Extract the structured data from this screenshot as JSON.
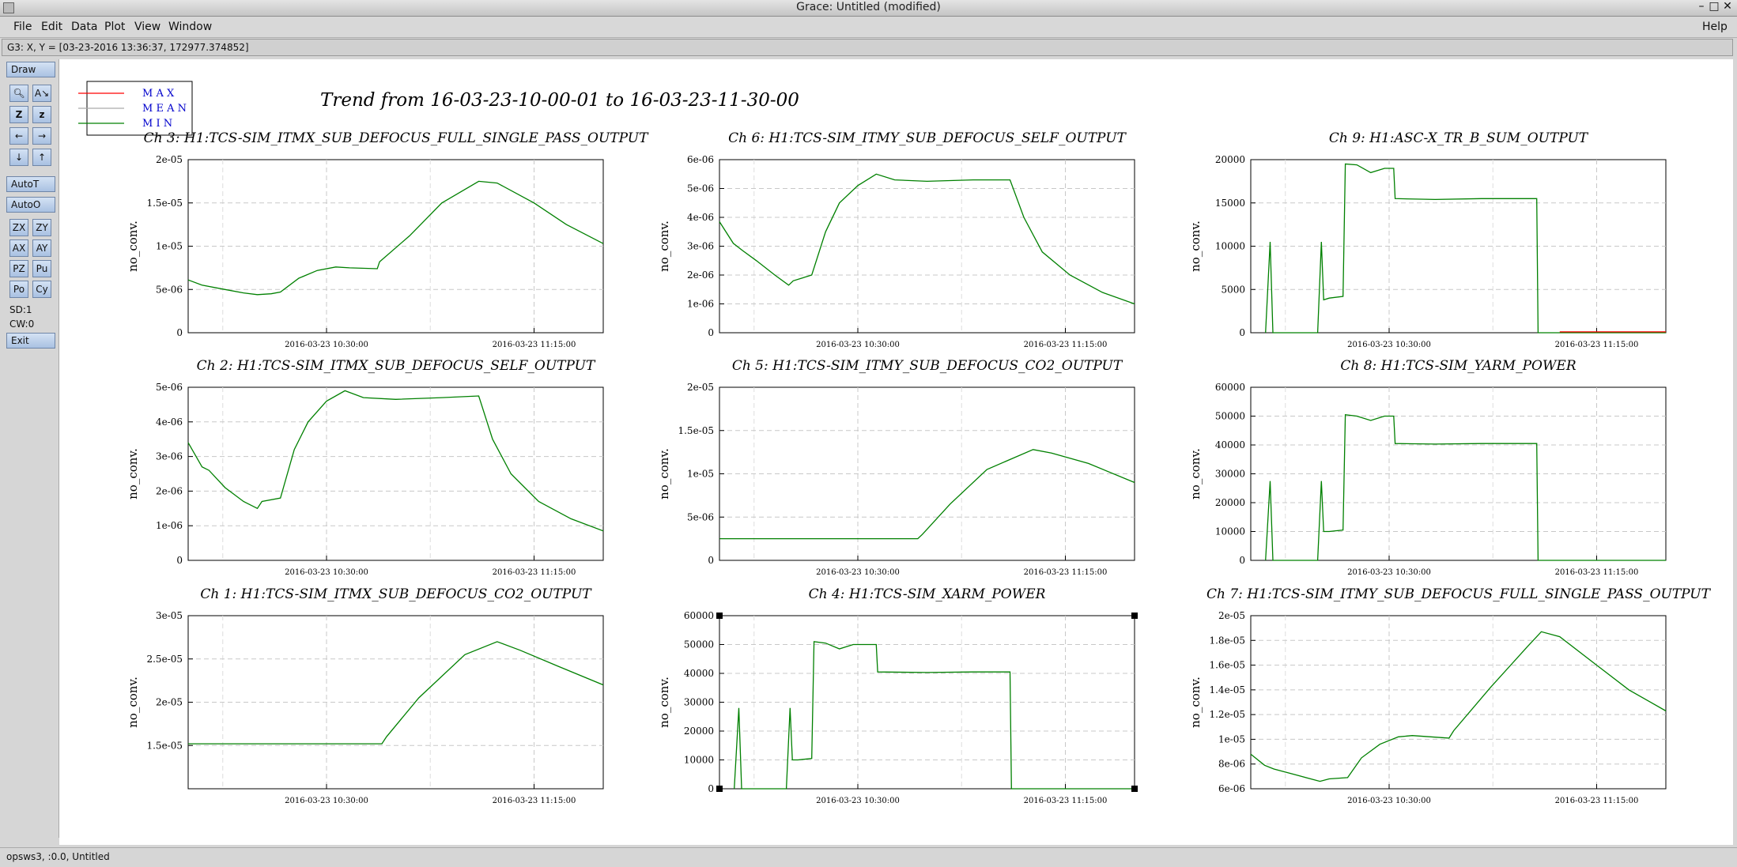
{
  "window": {
    "title": "Grace: Untitled (modified)"
  },
  "menu": {
    "file": "File",
    "edit": "Edit",
    "data": "Data",
    "plot": "Plot",
    "view": "View",
    "window": "Window",
    "help": "Help"
  },
  "locator": "G3: X, Y = [03-23-2016 13:36:37, 172977.374852]",
  "toolbar": {
    "draw": "Draw",
    "autot": "AutoT",
    "autoo": "AutoO",
    "exit": "Exit",
    "sd": "SD:1",
    "cw": "CW:0",
    "zx": "ZX",
    "zy": "ZY",
    "ax": "AX",
    "ay": "AY",
    "pz": "PZ",
    "pu": "Pu",
    "po": "Po",
    "cy": "Cy",
    "icons": [
      "zoom-icon",
      "autoscale-icon",
      "zoom-in-icon",
      "zoom-out-icon",
      "arrow-left-icon",
      "arrow-right-icon",
      "arrow-down-icon",
      "arrow-up-icon"
    ]
  },
  "status": "opsws3, :0.0, Untitled",
  "canvas": {
    "main_title": "Trend from 16-03-23-10-00-01 to 16-03-23-11-30-00",
    "legend": [
      {
        "label": "M A X",
        "color": "#ff0000"
      },
      {
        "label": "M E A N",
        "color": "#aaaaaa"
      },
      {
        "label": "M I N",
        "color": "#008000"
      }
    ]
  },
  "chart_data": [
    {
      "type": "line",
      "title": "Ch 3: H1:TCS-SIM_ITMX_SUB_DEFOCUS_FULL_SINGLE_PASS_OUTPUT",
      "ylabel": "no_conv.",
      "xticks": [
        "2016-03-23 10:30:00",
        "2016-03-23 11:15:00"
      ],
      "xlim": [
        0,
        90
      ],
      "ylim": [
        0,
        2e-05
      ],
      "yticks": [
        0,
        5e-06,
        1e-05,
        1.5e-05,
        2e-05
      ],
      "ytick_labels": [
        "0",
        "5e-06",
        "1e-05",
        "1.5e-05",
        "2e-05"
      ],
      "grid": true,
      "series": [
        {
          "color": "#008000",
          "points": [
            [
              0,
              6.1e-06
            ],
            [
              3,
              5.5e-06
            ],
            [
              8,
              5e-06
            ],
            [
              12,
              4.6e-06
            ],
            [
              15,
              4.4e-06
            ],
            [
              18,
              4.5e-06
            ],
            [
              20,
              4.7e-06
            ],
            [
              24,
              6.3e-06
            ],
            [
              28,
              7.2e-06
            ],
            [
              32,
              7.6e-06
            ],
            [
              35,
              7.5e-06
            ],
            [
              41,
              7.4e-06
            ],
            [
              41.5,
              8.2e-06
            ],
            [
              48,
              1.12e-05
            ],
            [
              55,
              1.5e-05
            ],
            [
              63,
              1.75e-05
            ],
            [
              67,
              1.73e-05
            ],
            [
              75,
              1.5e-05
            ],
            [
              82,
              1.25e-05
            ],
            [
              90,
              1.03e-05
            ]
          ]
        }
      ]
    },
    {
      "type": "line",
      "title": "Ch 6: H1:TCS-SIM_ITMY_SUB_DEFOCUS_SELF_OUTPUT",
      "ylabel": "no_conv.",
      "xticks": [
        "2016-03-23 10:30:00",
        "2016-03-23 11:15:00"
      ],
      "xlim": [
        0,
        90
      ],
      "ylim": [
        0,
        6e-06
      ],
      "yticks": [
        0,
        1e-06,
        2e-06,
        3e-06,
        4e-06,
        5e-06,
        6e-06
      ],
      "ytick_labels": [
        "0",
        "1e-06",
        "2e-06",
        "3e-06",
        "4e-06",
        "5e-06",
        "6e-06"
      ],
      "grid": true,
      "series": [
        {
          "color": "#008000",
          "points": [
            [
              0,
              3.85e-06
            ],
            [
              3,
              3.1e-06
            ],
            [
              5,
              2.85e-06
            ],
            [
              8,
              2.5e-06
            ],
            [
              12,
              2e-06
            ],
            [
              15,
              1.65e-06
            ],
            [
              16,
              1.8e-06
            ],
            [
              20,
              2e-06
            ],
            [
              23,
              3.5e-06
            ],
            [
              26,
              4.5e-06
            ],
            [
              30,
              5.1e-06
            ],
            [
              34,
              5.5e-06
            ],
            [
              38,
              5.3e-06
            ],
            [
              45,
              5.25e-06
            ],
            [
              55,
              5.3e-06
            ],
            [
              63,
              5.3e-06
            ],
            [
              66,
              4e-06
            ],
            [
              70,
              2.8e-06
            ],
            [
              76,
              2e-06
            ],
            [
              83,
              1.4e-06
            ],
            [
              90,
              1e-06
            ]
          ]
        }
      ]
    },
    {
      "type": "line",
      "title": "Ch 9: H1:ASC-X_TR_B_SUM_OUTPUT",
      "ylabel": "no_conv.",
      "xticks": [
        "2016-03-23 10:30:00",
        "2016-03-23 11:15:00"
      ],
      "xlim": [
        0,
        90
      ],
      "ylim": [
        0,
        20000
      ],
      "yticks": [
        0,
        5000,
        10000,
        15000,
        20000
      ],
      "ytick_labels": [
        "0",
        "5000",
        "10000",
        "15000",
        "20000"
      ],
      "grid": true,
      "series": [
        {
          "color": "#008000",
          "points": [
            [
              3.2,
              0
            ],
            [
              4.2,
              10500
            ],
            [
              4.8,
              0
            ],
            [
              14.5,
              0
            ],
            [
              15.3,
              10500
            ],
            [
              15.8,
              3800
            ],
            [
              17,
              4000
            ],
            [
              20,
              4200
            ],
            [
              20.5,
              19500
            ],
            [
              23,
              19400
            ],
            [
              26,
              18500
            ],
            [
              29,
              19000
            ],
            [
              31,
              19000
            ],
            [
              31.3,
              15500
            ],
            [
              40,
              15400
            ],
            [
              50,
              15500
            ],
            [
              62,
              15500
            ],
            [
              62.3,
              0
            ],
            [
              90,
              0
            ]
          ]
        },
        {
          "color": "#ff0000",
          "points": [
            [
              67,
              100
            ],
            [
              90,
              100
            ]
          ]
        }
      ]
    },
    {
      "type": "line",
      "title": "Ch 2: H1:TCS-SIM_ITMX_SUB_DEFOCUS_SELF_OUTPUT",
      "ylabel": "no_conv.",
      "xticks": [
        "2016-03-23 10:30:00",
        "2016-03-23 11:15:00"
      ],
      "xlim": [
        0,
        90
      ],
      "ylim": [
        0,
        5e-06
      ],
      "yticks": [
        0,
        1e-06,
        2e-06,
        3e-06,
        4e-06,
        5e-06
      ],
      "ytick_labels": [
        "0",
        "1e-06",
        "2e-06",
        "3e-06",
        "4e-06",
        "5e-06"
      ],
      "grid": true,
      "series": [
        {
          "color": "#008000",
          "points": [
            [
              0,
              3.4e-06
            ],
            [
              3,
              2.7e-06
            ],
            [
              4.5,
              2.6e-06
            ],
            [
              8,
              2.1e-06
            ],
            [
              12,
              1.7e-06
            ],
            [
              15,
              1.5e-06
            ],
            [
              16,
              1.7e-06
            ],
            [
              20,
              1.8e-06
            ],
            [
              23,
              3.2e-06
            ],
            [
              26,
              4e-06
            ],
            [
              30,
              4.6e-06
            ],
            [
              34,
              4.9e-06
            ],
            [
              38,
              4.7e-06
            ],
            [
              45,
              4.65e-06
            ],
            [
              55,
              4.7e-06
            ],
            [
              63,
              4.75e-06
            ],
            [
              66,
              3.5e-06
            ],
            [
              70,
              2.5e-06
            ],
            [
              76,
              1.7e-06
            ],
            [
              83,
              1.2e-06
            ],
            [
              90,
              8.5e-07
            ]
          ]
        }
      ]
    },
    {
      "type": "line",
      "title": "Ch 5: H1:TCS-SIM_ITMY_SUB_DEFOCUS_CO2_OUTPUT",
      "ylabel": "no_conv.",
      "xticks": [
        "2016-03-23 10:30:00",
        "2016-03-23 11:15:00"
      ],
      "xlim": [
        0,
        90
      ],
      "ylim": [
        0,
        2e-05
      ],
      "yticks": [
        0,
        5e-06,
        1e-05,
        1.5e-05,
        2e-05
      ],
      "ytick_labels": [
        "0",
        "5e-06",
        "1e-05",
        "1.5e-05",
        "2e-05"
      ],
      "grid": true,
      "series": [
        {
          "color": "#008000",
          "points": [
            [
              0,
              2.5e-06
            ],
            [
              43,
              2.5e-06
            ],
            [
              44,
              3e-06
            ],
            [
              50,
              6.5e-06
            ],
            [
              58,
              1.05e-05
            ],
            [
              68,
              1.28e-05
            ],
            [
              72,
              1.24e-05
            ],
            [
              80,
              1.12e-05
            ],
            [
              90,
              9e-06
            ]
          ]
        }
      ]
    },
    {
      "type": "line",
      "title": "Ch 8: H1:TCS-SIM_YARM_POWER",
      "ylabel": "no_conv.",
      "xticks": [
        "2016-03-23 10:30:00",
        "2016-03-23 11:15:00"
      ],
      "xlim": [
        0,
        90
      ],
      "ylim": [
        0,
        60000
      ],
      "yticks": [
        0,
        10000,
        20000,
        30000,
        40000,
        50000,
        60000
      ],
      "ytick_labels": [
        "0",
        "10000",
        "20000",
        "30000",
        "40000",
        "50000",
        "60000"
      ],
      "grid": true,
      "series": [
        {
          "color": "#008000",
          "points": [
            [
              3.2,
              0
            ],
            [
              4.2,
              27500
            ],
            [
              4.8,
              0
            ],
            [
              14.5,
              0
            ],
            [
              15.3,
              27500
            ],
            [
              15.8,
              10000
            ],
            [
              17,
              10000
            ],
            [
              20,
              10500
            ],
            [
              20.5,
              50500
            ],
            [
              23,
              50000
            ],
            [
              26,
              48500
            ],
            [
              29,
              50000
            ],
            [
              31,
              50000
            ],
            [
              31.3,
              40500
            ],
            [
              40,
              40300
            ],
            [
              50,
              40500
            ],
            [
              62,
              40500
            ],
            [
              62.3,
              0
            ],
            [
              90,
              0
            ]
          ]
        }
      ]
    },
    {
      "type": "line",
      "title": "Ch 1: H1:TCS-SIM_ITMX_SUB_DEFOCUS_CO2_OUTPUT",
      "ylabel": "no_conv.",
      "xticks": [
        "2016-03-23 10:30:00",
        "2016-03-23 11:15:00"
      ],
      "xlim": [
        0,
        90
      ],
      "ylim": [
        1e-05,
        3e-05
      ],
      "yticks": [
        1.5e-05,
        2e-05,
        2.5e-05,
        3e-05
      ],
      "ytick_labels": [
        "1.5e-05",
        "2e-05",
        "2.5e-05",
        "3e-05"
      ],
      "grid": true,
      "series": [
        {
          "color": "#008000",
          "points": [
            [
              0,
              1.52e-05
            ],
            [
              42,
              1.52e-05
            ],
            [
              43,
              1.6e-05
            ],
            [
              50,
              2.05e-05
            ],
            [
              60,
              2.55e-05
            ],
            [
              67,
              2.7e-05
            ],
            [
              72,
              2.6e-05
            ],
            [
              80,
              2.42e-05
            ],
            [
              90,
              2.2e-05
            ]
          ]
        }
      ]
    },
    {
      "type": "line",
      "title": "Ch 4: H1:TCS-SIM_XARM_POWER",
      "ylabel": "no_conv.",
      "xticks": [
        "2016-03-23 10:30:00",
        "2016-03-23 11:15:00"
      ],
      "xlim": [
        0,
        90
      ],
      "ylim": [
        0,
        60000
      ],
      "yticks": [
        0,
        10000,
        20000,
        30000,
        40000,
        50000,
        60000
      ],
      "ytick_labels": [
        "0",
        "10000",
        "20000",
        "30000",
        "40000",
        "50000",
        "60000"
      ],
      "grid": true,
      "series": [
        {
          "color": "#008000",
          "points": [
            [
              3.2,
              0
            ],
            [
              4.2,
              28000
            ],
            [
              4.8,
              0
            ],
            [
              14.5,
              0
            ],
            [
              15.3,
              28000
            ],
            [
              15.8,
              10000
            ],
            [
              17,
              10000
            ],
            [
              20,
              10500
            ],
            [
              20.5,
              51000
            ],
            [
              23,
              50500
            ],
            [
              26,
              48500
            ],
            [
              29,
              50000
            ],
            [
              34,
              50000
            ],
            [
              34.3,
              40500
            ],
            [
              45,
              40300
            ],
            [
              55,
              40500
            ],
            [
              63,
              40500
            ],
            [
              63.3,
              0
            ],
            [
              90,
              0
            ]
          ]
        }
      ]
    },
    {
      "type": "line",
      "title": "Ch 7: H1:TCS-SIM_ITMY_SUB_DEFOCUS_FULL_SINGLE_PASS_OUTPUT",
      "ylabel": "no_conv.",
      "xticks": [
        "2016-03-23 10:30:00",
        "2016-03-23 11:15:00"
      ],
      "xlim": [
        0,
        90
      ],
      "ylim": [
        6e-06,
        2e-05
      ],
      "yticks": [
        6e-06,
        8e-06,
        1e-05,
        1.2e-05,
        1.4e-05,
        1.6e-05,
        1.8e-05,
        2e-05
      ],
      "ytick_labels": [
        "6e-06",
        "8e-06",
        "1e-05",
        "1.2e-05",
        "1.4e-05",
        "1.6e-05",
        "1.8e-05",
        "2e-05"
      ],
      "grid": true,
      "series": [
        {
          "color": "#008000",
          "points": [
            [
              0,
              8.8e-06
            ],
            [
              3,
              7.9e-06
            ],
            [
              5,
              7.6e-06
            ],
            [
              10,
              7.1e-06
            ],
            [
              15,
              6.6e-06
            ],
            [
              17,
              6.8e-06
            ],
            [
              21,
              6.9e-06
            ],
            [
              24,
              8.5e-06
            ],
            [
              28,
              9.6e-06
            ],
            [
              32,
              1.02e-05
            ],
            [
              35,
              1.03e-05
            ],
            [
              43,
              1.01e-05
            ],
            [
              44,
              1.07e-05
            ],
            [
              52,
              1.42e-05
            ],
            [
              60,
              1.75e-05
            ],
            [
              63,
              1.87e-05
            ],
            [
              67,
              1.83e-05
            ],
            [
              75,
              1.6e-05
            ],
            [
              82,
              1.4e-05
            ],
            [
              90,
              1.23e-05
            ]
          ]
        }
      ]
    }
  ]
}
